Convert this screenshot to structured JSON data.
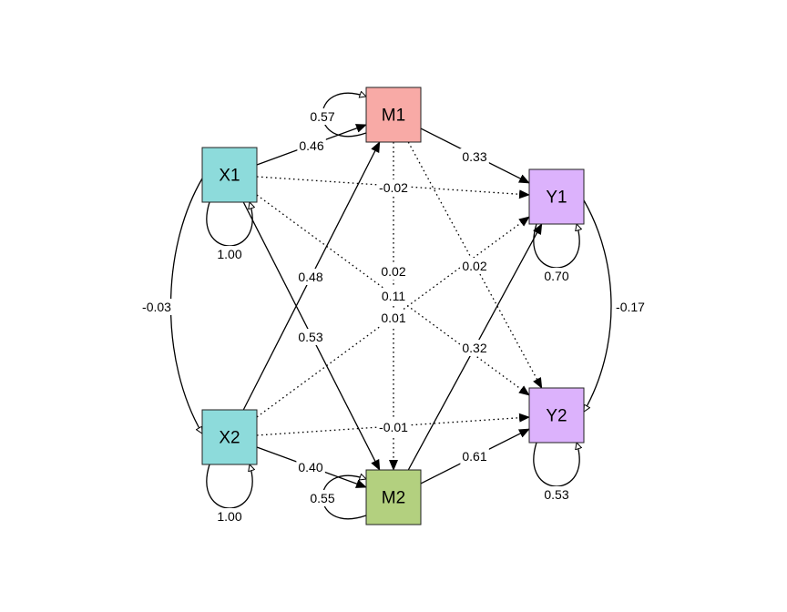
{
  "nodes": [
    {
      "id": "X1",
      "label": "X1",
      "color": "#8ddbdb"
    },
    {
      "id": "X2",
      "label": "X2",
      "color": "#8ddbdb"
    },
    {
      "id": "M1",
      "label": "M1",
      "color": "#f8aaa6"
    },
    {
      "id": "M2",
      "label": "M2",
      "color": "#b3d07f"
    },
    {
      "id": "Y1",
      "label": "Y1",
      "color": "#dcb2fc"
    },
    {
      "id": "Y2",
      "label": "Y2",
      "color": "#dcb2fc"
    }
  ],
  "paths": [
    {
      "from": "X1",
      "to": "M1",
      "value": "0.46",
      "style": "solid"
    },
    {
      "from": "X1",
      "to": "M2",
      "value": "0.53",
      "style": "solid"
    },
    {
      "from": "X2",
      "to": "M1",
      "value": "0.48",
      "style": "solid"
    },
    {
      "from": "X2",
      "to": "M2",
      "value": "0.40",
      "style": "solid"
    },
    {
      "from": "M1",
      "to": "Y1",
      "value": "0.33",
      "style": "solid"
    },
    {
      "from": "M2",
      "to": "Y1",
      "value": "0.32",
      "style": "solid"
    },
    {
      "from": "M2",
      "to": "Y2",
      "value": "0.61",
      "style": "solid"
    },
    {
      "from": "X1",
      "to": "Y1",
      "value": "-0.02",
      "style": "dotted"
    },
    {
      "from": "X1",
      "to": "Y2",
      "value": "0.11",
      "style": "dotted"
    },
    {
      "from": "X2",
      "to": "Y1",
      "value": "0.01",
      "style": "dotted"
    },
    {
      "from": "X2",
      "to": "Y2",
      "value": "-0.01",
      "style": "dotted"
    },
    {
      "from": "M1",
      "to": "M2",
      "value": "0.02",
      "style": "dotted"
    },
    {
      "from": "M1",
      "to": "Y2",
      "value": "0.02",
      "style": "dotted"
    }
  ],
  "covariances": [
    {
      "between": [
        "X1",
        "X2"
      ],
      "value": "-0.03"
    },
    {
      "between": [
        "Y1",
        "Y2"
      ],
      "value": "-0.17"
    }
  ],
  "variances": [
    {
      "node": "X1",
      "value": "1.00"
    },
    {
      "node": "X2",
      "value": "1.00"
    },
    {
      "node": "M1",
      "value": "0.57"
    },
    {
      "node": "M2",
      "value": "0.55"
    },
    {
      "node": "Y1",
      "value": "0.70"
    },
    {
      "node": "Y2",
      "value": "0.53"
    }
  ]
}
